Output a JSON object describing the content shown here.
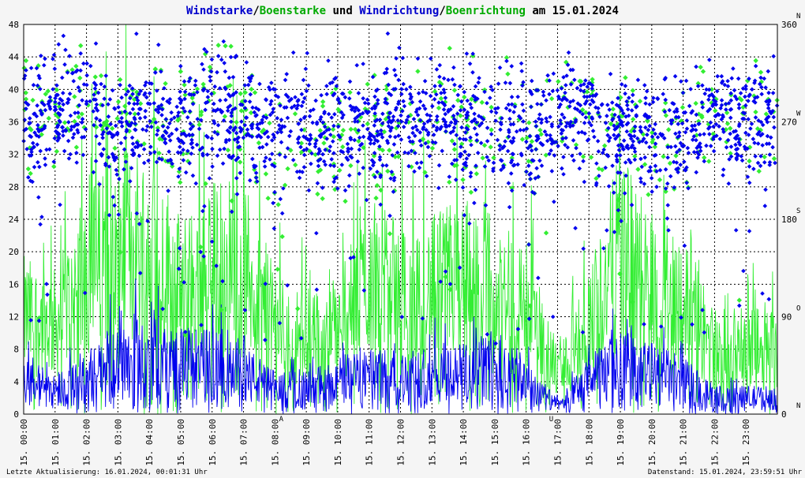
{
  "chart_data": {
    "type": "line",
    "title": {
      "parts": [
        {
          "text": "Windstarke",
          "color": "#0000cc"
        },
        {
          "text": "/",
          "color": "#000000"
        },
        {
          "text": "Boenstarke",
          "color": "#00aa00"
        },
        {
          "text": " und ",
          "color": "#000000"
        },
        {
          "text": "Windrichtung",
          "color": "#0000cc"
        },
        {
          "text": "/",
          "color": "#000000"
        },
        {
          "text": "Boenrichtung",
          "color": "#00aa00"
        },
        {
          "text": " am 15.01.2024",
          "color": "#000000"
        }
      ]
    },
    "ylim_left": [
      0,
      48
    ],
    "left_ticks": [
      "0",
      "4",
      "8",
      "12",
      "16",
      "20",
      "24",
      "28",
      "32",
      "36",
      "40",
      "44",
      "48"
    ],
    "ylim_right": [
      0,
      360
    ],
    "right_ticks": [
      "0",
      "90",
      "180",
      "270",
      "360"
    ],
    "right_compass": [
      "N",
      "O",
      "S",
      "W",
      "N"
    ],
    "x_labels": [
      "15. 00:00",
      "15. 01:00",
      "15. 02:00",
      "15. 03:00",
      "15. 04:00",
      "15. 05:00",
      "15. 06:00",
      "15. 07:00",
      "15. 08:00",
      "15. 09:00",
      "15. 10:00",
      "15. 11:00",
      "15. 12:00",
      "15. 13:00",
      "15. 14:00",
      "15. 15:00",
      "15. 16:00",
      "15. 17:00",
      "15. 18:00",
      "15. 19:00",
      "15. 20:00",
      "15. 21:00",
      "15. 22:00",
      "15. 23:00"
    ],
    "grid": true,
    "markers": [
      {
        "hour": 8.2,
        "label": "A",
        "color": "#cc0000"
      },
      {
        "hour": 16.8,
        "label": "U",
        "color": "#cc0000"
      }
    ],
    "series": [
      {
        "name": "Windstarke",
        "kind": "line",
        "axis": "left",
        "color": "#0000ee",
        "hourly_level": [
          4,
          3,
          4,
          7,
          7,
          6,
          6,
          5,
          3,
          3,
          4,
          5,
          4,
          5,
          5,
          6,
          4,
          1,
          4,
          6,
          5,
          4,
          2,
          2
        ]
      },
      {
        "name": "Boenstarke",
        "kind": "line",
        "axis": "left",
        "color": "#33ee33",
        "hourly_level": [
          12,
          11,
          17,
          20,
          21,
          15,
          18,
          18,
          11,
          9,
          10,
          17,
          14,
          15,
          17,
          13,
          14,
          5,
          11,
          20,
          16,
          14,
          8,
          8
        ]
      },
      {
        "name": "Windrichtung",
        "kind": "scatter",
        "axis": "right",
        "color": "#0000ee",
        "hourly_level": [
          270,
          280,
          280,
          260,
          280,
          260,
          280,
          275,
          260,
          270,
          265,
          275,
          270,
          270,
          265,
          265,
          260,
          280,
          270,
          255,
          255,
          265,
          275,
          270
        ]
      },
      {
        "name": "Boenrichtung",
        "kind": "scatter",
        "axis": "right",
        "color": "#33ee33",
        "hourly_level": [
          280,
          275,
          290,
          265,
          285,
          255,
          290,
          285,
          235,
          260,
          255,
          265,
          250,
          265,
          260,
          270,
          260,
          280,
          275,
          265,
          250,
          265,
          280,
          275
        ]
      }
    ],
    "footer_left": "Letzte Aktualisierung: 16.01.2024, 00:01:31 Uhr",
    "footer_right": "Datenstand: 15.01.2024, 23:59:51 Uhr"
  }
}
